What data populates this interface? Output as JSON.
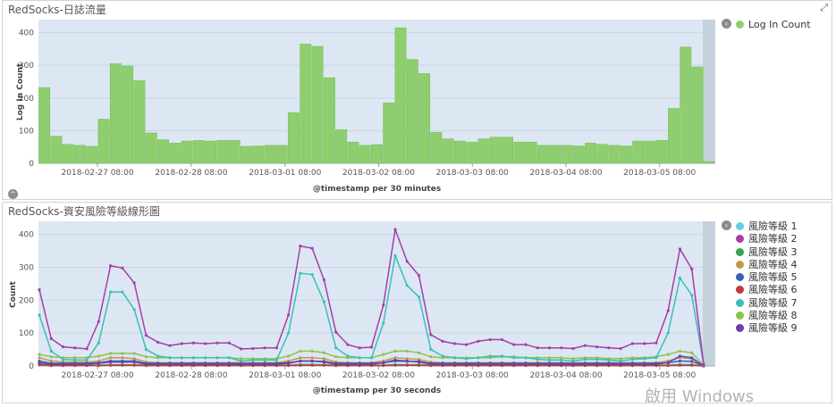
{
  "panels": [
    {
      "title": "RedSocks-日誌流量",
      "expand_icon": "expand-icon"
    },
    {
      "title": "RedSocks-資安風險等級線形圖"
    }
  ],
  "watermark": "啟用 Windows",
  "chart_data": [
    {
      "type": "bar",
      "title": "RedSocks-日誌流量",
      "xlabel": "@timestamp per 30 minutes",
      "ylabel": "Log In Count",
      "ylim": [
        0,
        440
      ],
      "yticks": [
        0,
        100,
        200,
        300,
        400
      ],
      "grid": true,
      "legend_position": "right",
      "series": [
        {
          "name": "Log In Count",
          "color": "#8fce6f",
          "values": [
            232,
            83,
            58,
            55,
            52,
            135,
            305,
            298,
            253,
            93,
            72,
            62,
            68,
            70,
            68,
            70,
            70,
            52,
            53,
            55,
            55,
            155,
            365,
            358,
            262,
            103,
            65,
            55,
            57,
            185,
            415,
            318,
            275,
            95,
            75,
            68,
            65,
            75,
            80,
            80,
            65,
            65,
            55,
            55,
            55,
            53,
            62,
            58,
            55,
            53,
            68,
            68,
            70,
            168,
            356,
            295,
            5
          ]
        }
      ],
      "x_start": "2018-02-26 18:00",
      "x_tick_labels": [
        "2018-02-27 08:00",
        "2018-02-28 08:00",
        "2018-03-01 08:00",
        "2018-03-02 08:00",
        "2018-03-03 08:00",
        "2018-03-04 08:00",
        "2018-03-05 08:00"
      ]
    },
    {
      "type": "line",
      "title": "RedSocks-資安風險等級線形圖",
      "xlabel": "@timestamp per 30 seconds",
      "ylabel": "Count",
      "ylim": [
        0,
        440
      ],
      "yticks": [
        0,
        100,
        200,
        300,
        400
      ],
      "grid": true,
      "legend_position": "right",
      "x_start": "2018-02-26 18:00",
      "x_tick_labels": [
        "2018-02-27 08:00",
        "2018-02-28 08:00",
        "2018-03-01 08:00",
        "2018-03-02 08:00",
        "2018-03-03 08:00",
        "2018-03-04 08:00",
        "2018-03-05 08:00"
      ],
      "series": [
        {
          "name": "風險等級 1",
          "color": "#6dcde0",
          "values": [
            8,
            3,
            2,
            2,
            2,
            3,
            4,
            4,
            3,
            2,
            2,
            2,
            2,
            2,
            2,
            2,
            2,
            2,
            2,
            2,
            2,
            3,
            5,
            5,
            4,
            2,
            2,
            2,
            2,
            3,
            5,
            4,
            4,
            2,
            2,
            2,
            2,
            2,
            2,
            2,
            2,
            2,
            2,
            2,
            2,
            2,
            2,
            2,
            2,
            2,
            2,
            2,
            2,
            3,
            5,
            4,
            0
          ]
        },
        {
          "name": "風險等級 2",
          "color": "#a63ea8",
          "values": [
            232,
            83,
            58,
            55,
            52,
            135,
            305,
            298,
            253,
            93,
            72,
            62,
            68,
            70,
            68,
            70,
            70,
            52,
            53,
            55,
            55,
            155,
            365,
            358,
            262,
            103,
            65,
            55,
            57,
            185,
            415,
            318,
            275,
            95,
            75,
            68,
            65,
            75,
            80,
            80,
            65,
            65,
            55,
            55,
            55,
            53,
            62,
            58,
            55,
            53,
            68,
            68,
            70,
            168,
            356,
            295,
            5
          ]
        },
        {
          "name": "風險等級 3",
          "color": "#3aa157",
          "values": [
            5,
            2,
            2,
            2,
            2,
            2,
            3,
            3,
            3,
            2,
            2,
            2,
            2,
            2,
            2,
            2,
            2,
            2,
            2,
            2,
            2,
            2,
            3,
            3,
            3,
            2,
            2,
            2,
            2,
            2,
            3,
            3,
            3,
            2,
            2,
            2,
            2,
            2,
            2,
            2,
            2,
            2,
            2,
            2,
            2,
            2,
            2,
            2,
            2,
            2,
            2,
            2,
            2,
            2,
            3,
            3,
            0
          ]
        },
        {
          "name": "風險等級 4",
          "color": "#c7964a",
          "values": [
            25,
            15,
            12,
            12,
            12,
            15,
            25,
            25,
            22,
            12,
            10,
            10,
            10,
            10,
            10,
            10,
            10,
            10,
            10,
            10,
            10,
            15,
            25,
            25,
            22,
            12,
            10,
            10,
            10,
            15,
            25,
            22,
            20,
            12,
            10,
            10,
            10,
            10,
            10,
            10,
            10,
            10,
            10,
            10,
            10,
            10,
            10,
            10,
            10,
            10,
            10,
            10,
            10,
            15,
            25,
            22,
            0
          ]
        },
        {
          "name": "風險等級 5",
          "color": "#3b5fb5",
          "values": [
            15,
            8,
            8,
            8,
            8,
            10,
            15,
            15,
            15,
            8,
            8,
            8,
            8,
            8,
            8,
            8,
            8,
            8,
            8,
            8,
            8,
            10,
            15,
            15,
            14,
            8,
            8,
            8,
            8,
            10,
            15,
            14,
            14,
            8,
            8,
            8,
            8,
            8,
            8,
            8,
            8,
            8,
            8,
            8,
            8,
            8,
            8,
            8,
            8,
            8,
            8,
            8,
            8,
            10,
            15,
            14,
            0
          ]
        },
        {
          "name": "風險等級 6",
          "color": "#c0393b",
          "values": [
            3,
            1,
            1,
            1,
            1,
            1,
            2,
            2,
            2,
            1,
            1,
            1,
            1,
            1,
            1,
            1,
            1,
            1,
            1,
            1,
            1,
            1,
            2,
            2,
            2,
            1,
            1,
            1,
            1,
            1,
            2,
            2,
            2,
            1,
            1,
            1,
            1,
            1,
            1,
            1,
            1,
            1,
            1,
            1,
            1,
            1,
            1,
            1,
            1,
            1,
            1,
            1,
            1,
            1,
            2,
            2,
            0
          ]
        },
        {
          "name": "風險等級 7",
          "color": "#3cbfb7",
          "values": [
            155,
            45,
            20,
            18,
            18,
            70,
            225,
            225,
            172,
            50,
            30,
            25,
            25,
            25,
            25,
            25,
            25,
            15,
            18,
            18,
            18,
            100,
            282,
            278,
            195,
            55,
            30,
            25,
            25,
            130,
            335,
            245,
            210,
            50,
            30,
            25,
            22,
            25,
            30,
            30,
            25,
            25,
            20,
            18,
            18,
            15,
            20,
            20,
            18,
            15,
            20,
            22,
            25,
            100,
            268,
            215,
            3
          ]
        },
        {
          "name": "風險等級 8",
          "color": "#8cc34b",
          "values": [
            35,
            28,
            25,
            25,
            25,
            30,
            38,
            38,
            38,
            28,
            25,
            25,
            25,
            25,
            25,
            25,
            25,
            22,
            22,
            22,
            22,
            30,
            45,
            45,
            40,
            28,
            25,
            25,
            25,
            35,
            45,
            45,
            40,
            28,
            25,
            25,
            25,
            25,
            25,
            28,
            28,
            25,
            25,
            25,
            25,
            22,
            25,
            25,
            22,
            22,
            25,
            25,
            28,
            35,
            45,
            40,
            2
          ]
        },
        {
          "name": "風險等級 9",
          "color": "#6b3fa8",
          "values": [
            10,
            5,
            5,
            5,
            5,
            8,
            12,
            12,
            12,
            5,
            5,
            5,
            5,
            5,
            5,
            5,
            5,
            5,
            5,
            5,
            5,
            8,
            15,
            15,
            12,
            5,
            5,
            5,
            5,
            10,
            18,
            15,
            12,
            5,
            5,
            5,
            5,
            5,
            5,
            5,
            5,
            5,
            5,
            5,
            5,
            5,
            5,
            5,
            5,
            5,
            5,
            5,
            5,
            10,
            30,
            25,
            0
          ]
        }
      ]
    }
  ]
}
